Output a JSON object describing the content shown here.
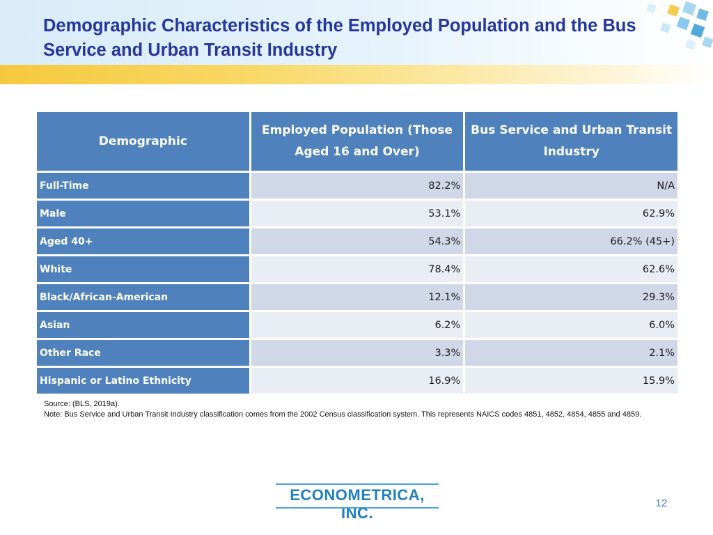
{
  "slide": {
    "title": "Demographic Characteristics of the Employed Population and the Bus Service and Urban Transit Industry",
    "page_number": "12"
  },
  "table": {
    "headers": [
      "Demographic",
      "Employed Population (Those Aged 16 and Over)",
      "Bus Service and Urban Transit Industry"
    ],
    "rows": [
      {
        "label": "Full-Time",
        "employed": "82.2%",
        "transit": "N/A"
      },
      {
        "label": "Male",
        "employed": "53.1%",
        "transit": "62.9%"
      },
      {
        "label": "Aged 40+",
        "employed": "54.3%",
        "transit": "66.2% (45+)"
      },
      {
        "label": "White",
        "employed": "78.4%",
        "transit": "62.6%"
      },
      {
        "label": "Black/African-American",
        "employed": "12.1%",
        "transit": "29.3%"
      },
      {
        "label": "Asian",
        "employed": "6.2%",
        "transit": "6.0%"
      },
      {
        "label": "Other Race",
        "employed": "3.3%",
        "transit": "2.1%"
      },
      {
        "label": "Hispanic or Latino Ethnicity",
        "employed": "16.9%",
        "transit": "15.9%"
      }
    ]
  },
  "notes": {
    "source": "Source: (BLS, 2019a).",
    "note": "Note: Bus Service and Urban Transit Industry classification comes from the 2002 Census classification system. This represents NAICS codes 4851, 4852, 4854, 4855 and 4859."
  },
  "logo": {
    "text": "ECONOMETRICA, INC."
  },
  "colors": {
    "title": "#27369a",
    "header_fill": "#4f81bd",
    "row_fill_odd": "#d0d8e8",
    "row_fill_even": "#e9edf4",
    "accent_yellow": "#f5c93e",
    "logo": "#1f7fc0"
  }
}
